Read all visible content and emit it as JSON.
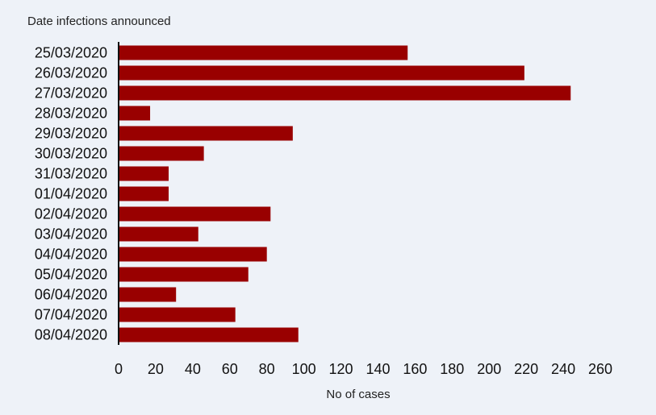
{
  "chart_data": {
    "type": "bar",
    "orientation": "horizontal",
    "title": "",
    "ylabel": "Date infections announced",
    "xlabel": "No of cases",
    "categories": [
      "25/03/2020",
      "26/03/2020",
      "27/03/2020",
      "28/03/2020",
      "29/03/2020",
      "30/03/2020",
      "31/03/2020",
      "01/04/2020",
      "02/04/2020",
      "03/04/2020",
      "04/04/2020",
      "05/04/2020",
      "06/04/2020",
      "07/04/2020",
      "08/04/2020"
    ],
    "values": [
      156,
      219,
      244,
      17,
      94,
      46,
      27,
      27,
      82,
      43,
      80,
      70,
      31,
      63,
      97
    ],
    "xlim": [
      0,
      260
    ],
    "xticks": [
      "0",
      "20",
      "40",
      "60",
      "80",
      "100",
      "120",
      "140",
      "160",
      "180",
      "200",
      "220",
      "240",
      "260"
    ],
    "grid": false,
    "legend": "none",
    "bar_color": "#990000",
    "axis_color": "#111111"
  }
}
